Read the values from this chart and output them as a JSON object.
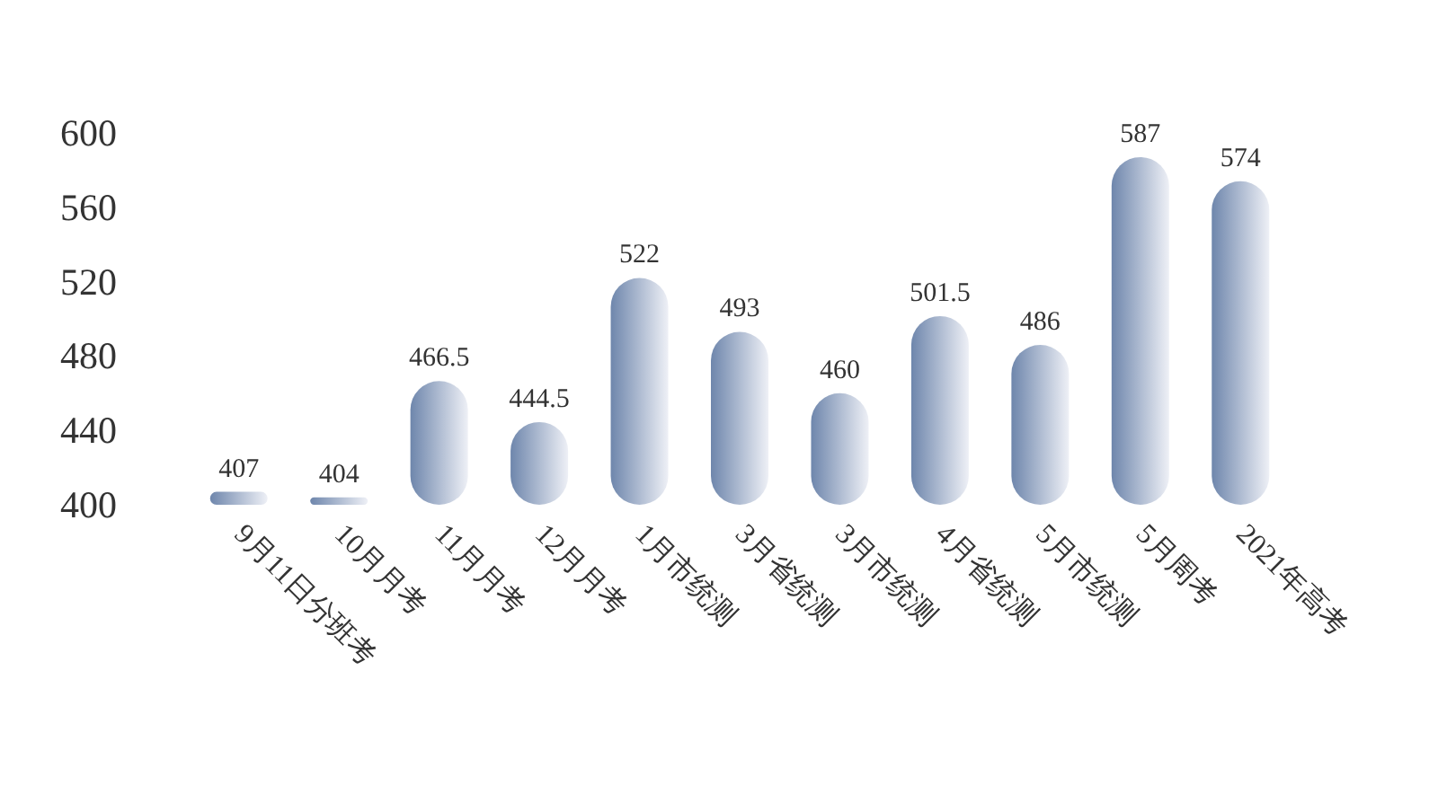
{
  "chart_data": {
    "type": "bar",
    "categories": [
      "9月11日分班考",
      "10月月考",
      "11月月考",
      "12月月考",
      "1月市统测",
      "3月省统测",
      "3月市统测",
      "4月省统测",
      "5月市统测",
      "5月周考",
      "2021年高考"
    ],
    "values": [
      407,
      404,
      466.5,
      444.5,
      522,
      493,
      460,
      501.5,
      486,
      587,
      574
    ],
    "color": "#6e86ac",
    "ylim": [
      400,
      600
    ],
    "yticks": [
      400,
      440,
      480,
      520,
      560,
      600
    ],
    "grid": false,
    "data_labels": true
  }
}
